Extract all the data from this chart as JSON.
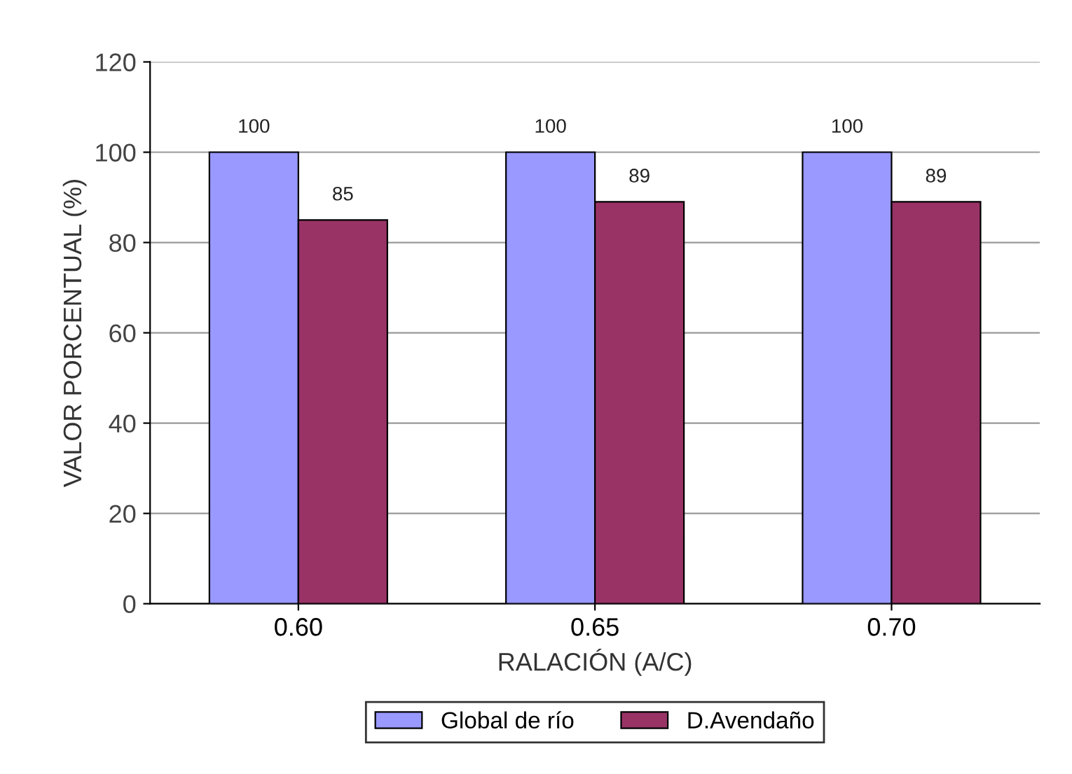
{
  "chart_data": {
    "type": "bar",
    "xlabel": "RALACIÓN (A/C)",
    "ylabel": "VALOR PORCENTUAL (%)",
    "categories": [
      "0.60",
      "0.65",
      "0.70"
    ],
    "series": [
      {
        "name": "Global de río",
        "color": "#9999ff",
        "values": [
          100,
          100,
          100
        ]
      },
      {
        "name": "D.Avendaño",
        "color": "#993366",
        "values": [
          85,
          89,
          89
        ]
      }
    ],
    "ylim": [
      0,
      120
    ],
    "yticks": [
      0,
      20,
      40,
      60,
      80,
      100,
      120
    ],
    "grid": "y",
    "legend": "bottom",
    "data_labels": true
  }
}
